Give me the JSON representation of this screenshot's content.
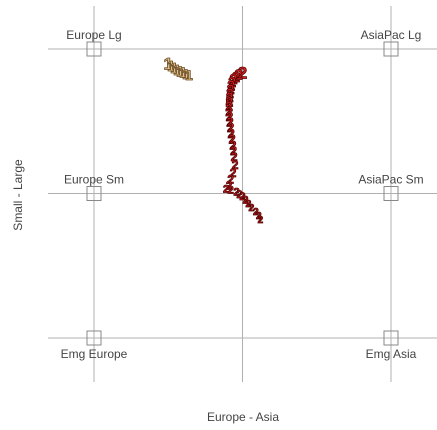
{
  "chart_data": {
    "type": "scatter",
    "title": "",
    "xlabel": "Europe - Asia",
    "ylabel": "Small - Large",
    "xlim": [
      0,
      1
    ],
    "ylim": [
      0,
      1
    ],
    "grid": true,
    "anchors": [
      {
        "label": "Europe Lg",
        "x": 0,
        "y": 1
      },
      {
        "label": "AsiaPac Lg",
        "x": 1,
        "y": 1
      },
      {
        "label": "Europe Sm",
        "x": 0,
        "y": 0.5
      },
      {
        "label": "AsiaPac Sm",
        "x": 1,
        "y": 0.5
      },
      {
        "label": "Emg Europe",
        "x": 0,
        "y": 0
      },
      {
        "label": "Emg Asia",
        "x": 1,
        "y": 0
      }
    ],
    "series": [
      {
        "name": "1",
        "color": "#e0c090",
        "outline": "#6a4a20",
        "x": [
          0.25,
          0.26,
          0.27,
          0.28,
          0.29,
          0.3,
          0.31,
          0.32
        ],
        "y": [
          0.95,
          0.942,
          0.934,
          0.928,
          0.922,
          0.918,
          0.914,
          0.91
        ]
      },
      {
        "name": "2",
        "color": "#e02020",
        "outline": "#4a0000",
        "x": [
          0.5,
          0.487,
          0.478,
          0.47,
          0.465,
          0.462,
          0.46,
          0.458,
          0.457,
          0.456,
          0.455,
          0.455,
          0.456,
          0.458,
          0.46,
          0.462,
          0.465,
          0.468,
          0.47,
          0.472,
          0.475,
          0.468,
          0.46,
          0.455,
          0.445,
          0.46,
          0.48,
          0.49,
          0.5,
          0.51,
          0.52,
          0.53,
          0.545,
          0.555,
          0.56
        ],
        "y": [
          0.918,
          0.912,
          0.904,
          0.896,
          0.886,
          0.874,
          0.862,
          0.848,
          0.834,
          0.818,
          0.802,
          0.784,
          0.766,
          0.748,
          0.728,
          0.708,
          0.688,
          0.668,
          0.648,
          0.628,
          0.6,
          0.572,
          0.548,
          0.528,
          0.518,
          0.514,
          0.506,
          0.498,
          0.49,
          0.478,
          0.466,
          0.452,
          0.438,
          0.424,
          0.41
        ]
      }
    ]
  }
}
